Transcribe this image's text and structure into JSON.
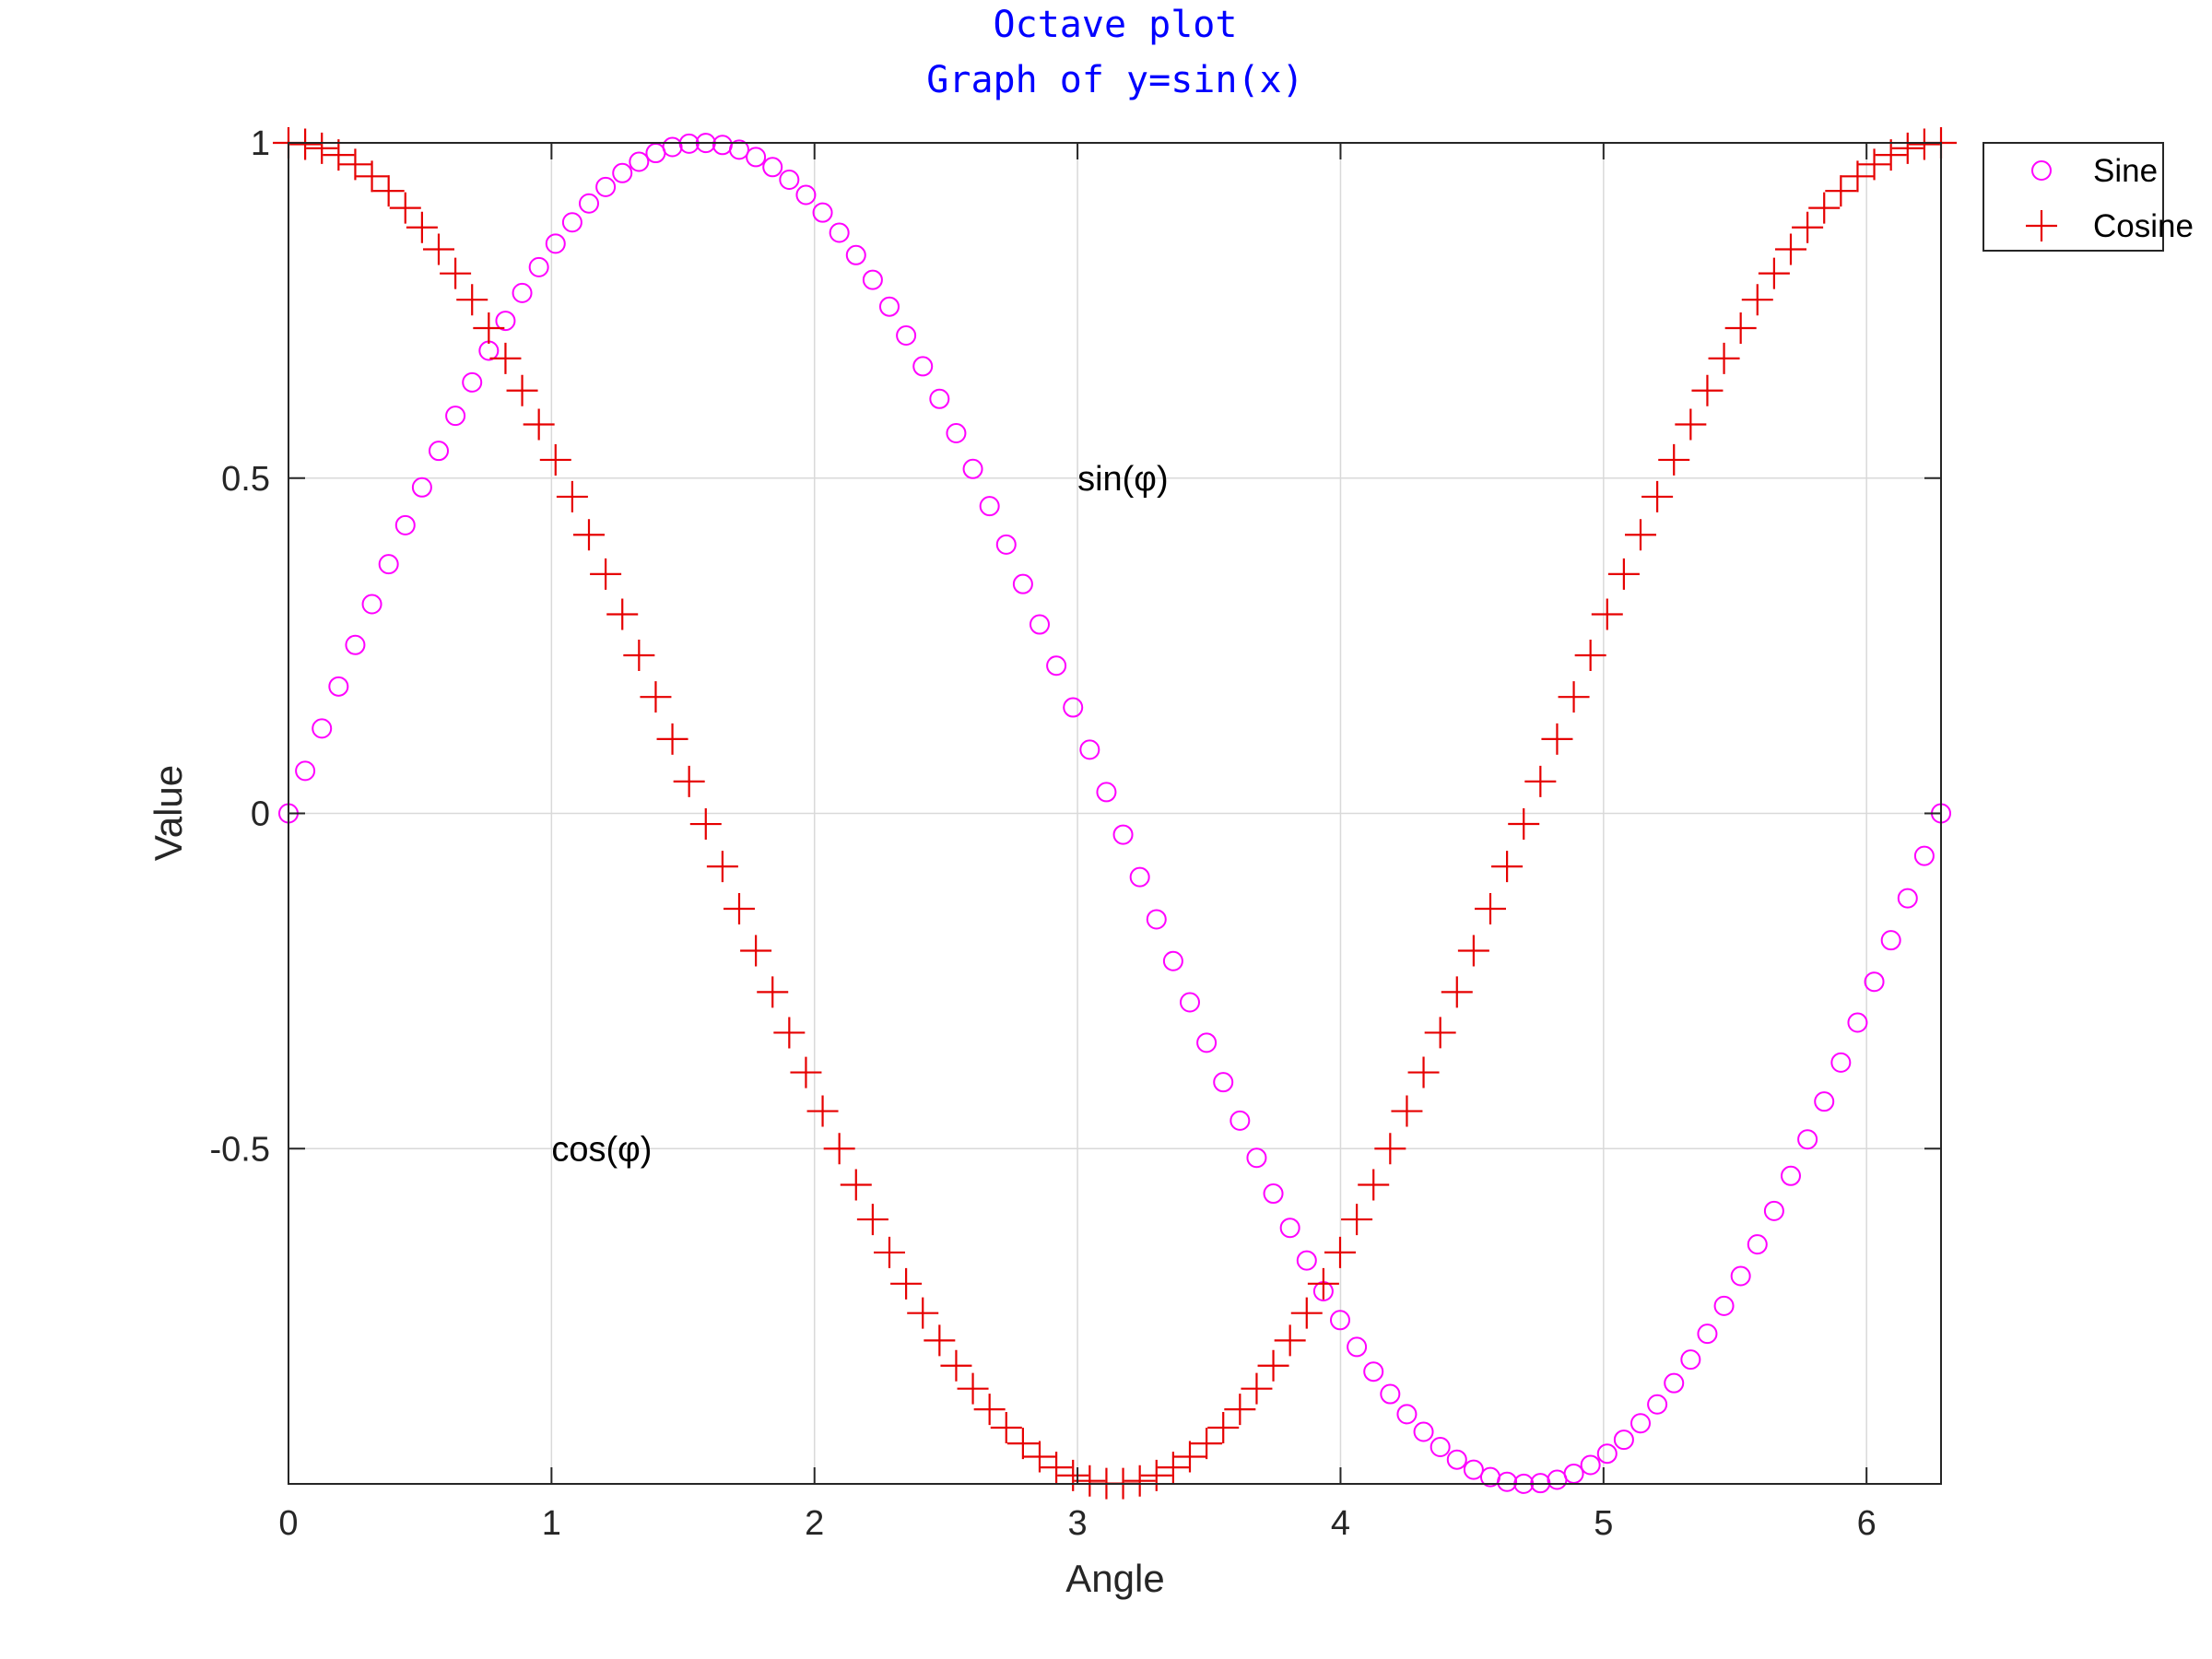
{
  "chart_data": {
    "type": "scatter",
    "title": [
      "Octave plot",
      "Graph of y=sin(x)"
    ],
    "xlabel": "Angle",
    "ylabel": "Value",
    "xlim": [
      0,
      6.2832
    ],
    "ylim": [
      -1,
      1
    ],
    "x_ticks": [
      0,
      1,
      2,
      3,
      4,
      5,
      6
    ],
    "x_tick_labels": [
      "0",
      "1",
      "2",
      "3",
      "4",
      "5",
      "6"
    ],
    "y_ticks": [
      -0.5,
      0,
      0.5,
      1
    ],
    "y_tick_labels": [
      "-0.5",
      "0",
      "0.5",
      "1"
    ],
    "grid": true,
    "legend_position": "outside-top-right",
    "x_range": [
      0,
      6.2832
    ],
    "point_count": 100,
    "series": [
      {
        "name": "Sine",
        "function": "sin",
        "marker": "circle",
        "color": "#ff00ff"
      },
      {
        "name": "Cosine",
        "function": "cos",
        "marker": "plus",
        "color": "#e60000"
      }
    ],
    "annotations": [
      {
        "text": "sin(φ)",
        "x": 3.0,
        "y": 0.5
      },
      {
        "text": "cos(φ)",
        "x": 1.0,
        "y": -0.5
      }
    ]
  }
}
